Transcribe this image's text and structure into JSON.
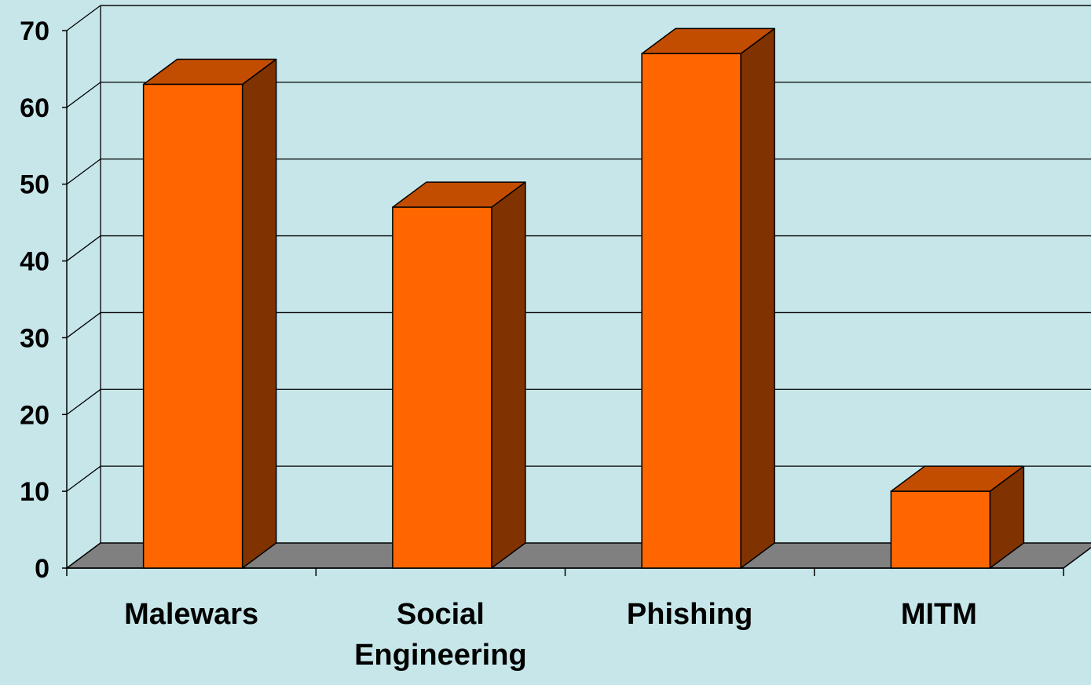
{
  "chart_data": {
    "type": "bar",
    "categories": [
      "Malewars",
      "Social Engineering",
      "Phishing",
      "MITM"
    ],
    "category_lines": [
      [
        "Malewars"
      ],
      [
        "Social",
        "Engineering"
      ],
      [
        "Phishing"
      ],
      [
        "MITM"
      ]
    ],
    "values": [
      63,
      47,
      67,
      10
    ],
    "title": "",
    "xlabel": "",
    "ylabel": "",
    "ylim": [
      0,
      70
    ],
    "yticks": [
      0,
      10,
      20,
      30,
      40,
      50,
      60,
      70
    ],
    "grid": true,
    "legend": "none",
    "style": "3d-column"
  },
  "colors": {
    "background": "#C6E6E9",
    "bar_front": "#FF6600",
    "bar_top": "#C24D00",
    "bar_side": "#803300",
    "floor": "#808080",
    "gridline": "#000000",
    "text": "#000000"
  }
}
